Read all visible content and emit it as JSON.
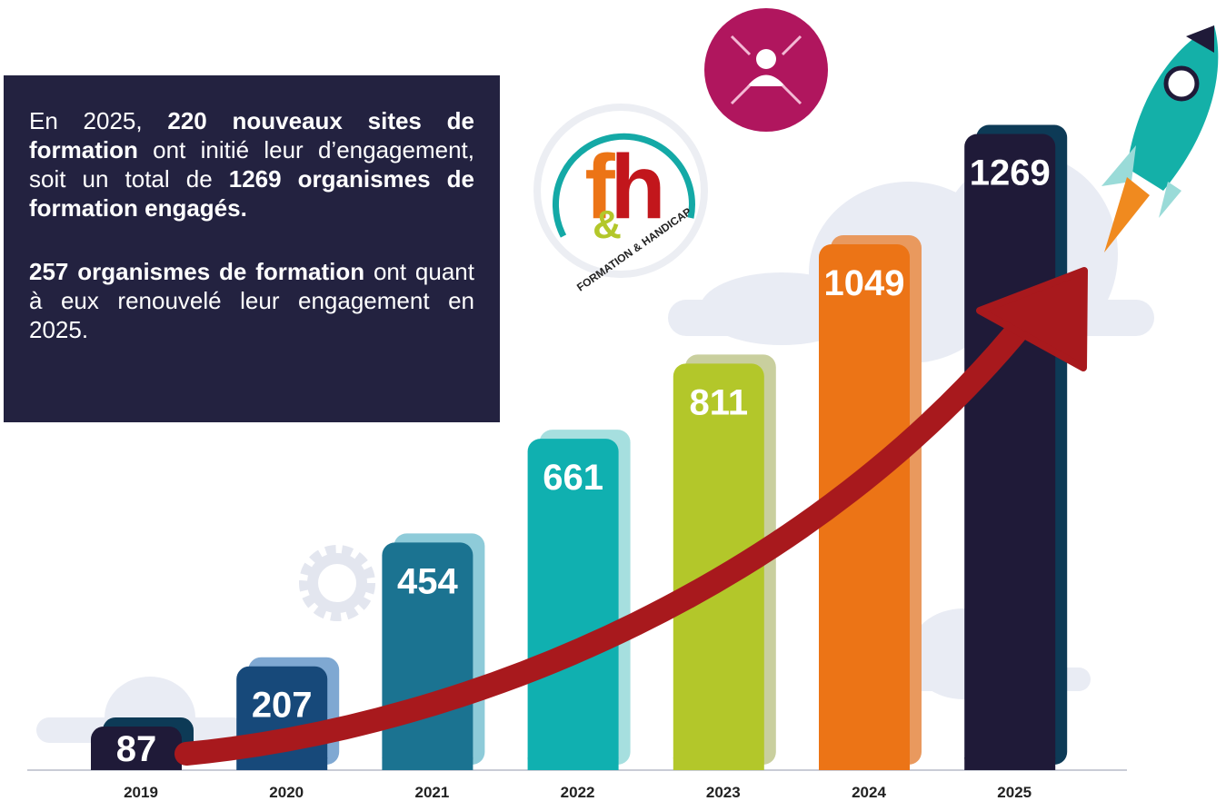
{
  "chart_data": {
    "type": "bar",
    "categories": [
      "2019",
      "2020",
      "2021",
      "2022",
      "2023",
      "2024",
      "2025"
    ],
    "series": [
      {
        "values": [
          87,
          207,
          454,
          661,
          811,
          1049,
          1269
        ],
        "colors": [
          "#1f1a38",
          "#17497a",
          "#1b7391",
          "#10b0b0",
          "#b3c72a",
          "#ec7416",
          "#1f1a38"
        ],
        "side_colors": [
          "#0d3a56",
          "#7fa8d2",
          "#8ecbd9",
          "#a6dfdf",
          "#c9cf9e",
          "#e9995e",
          "#0d3a56"
        ]
      }
    ]
  },
  "text_box": {
    "paragraphs": [
      [
        {
          "text": "En 2025, ",
          "bold": false
        },
        {
          "text": "220 nouveaux sites de formation",
          "bold": true
        },
        {
          "text": " ont initié leur d’engagement, soit un total de ",
          "bold": false
        },
        {
          "text": "1269 organismes de formation engagés.",
          "bold": true
        }
      ],
      [
        {
          "text": "257 organismes de formation",
          "bold": true
        },
        {
          "text": " ont quant à eux renouvelé leur engagement en 2025.",
          "bold": false
        }
      ]
    ]
  },
  "logo": {
    "f": "f",
    "h": "h",
    "amp": "&",
    "ring_text": "FORMATION & HANDICAP"
  }
}
